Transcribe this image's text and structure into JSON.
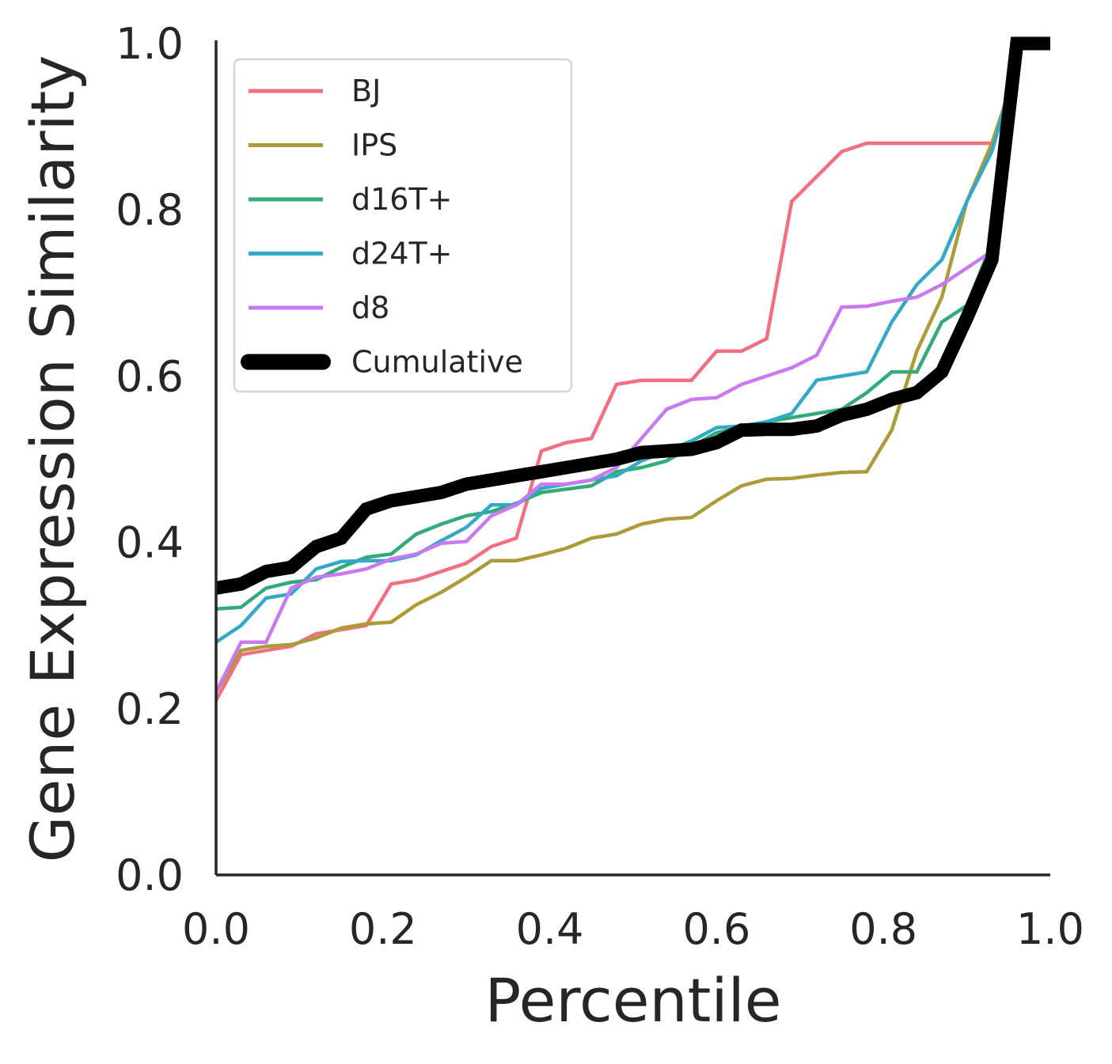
{
  "chart_data": {
    "type": "line",
    "title": "",
    "xlabel": "Percentile",
    "ylabel": "Gene Expression Similarity",
    "xlim": [
      0.0,
      1.0
    ],
    "ylim": [
      0.0,
      1.0
    ],
    "xticks": [
      "0.0",
      "0.2",
      "0.4",
      "0.6",
      "0.8",
      "1.0"
    ],
    "yticks": [
      "0.0",
      "0.2",
      "0.4",
      "0.6",
      "0.8",
      "1.0"
    ],
    "grid": false,
    "legend_position": "top-left",
    "series": [
      {
        "name": "BJ",
        "color": "#f0707f",
        "width": "normal",
        "x": [
          0.0,
          0.03,
          0.06,
          0.09,
          0.12,
          0.15,
          0.18,
          0.21,
          0.24,
          0.27,
          0.3,
          0.33,
          0.36,
          0.39,
          0.42,
          0.45,
          0.48,
          0.51,
          0.54,
          0.57,
          0.6,
          0.63,
          0.66,
          0.69,
          0.72,
          0.75,
          0.78,
          0.81,
          0.84,
          0.87,
          0.9,
          0.93
        ],
        "y": [
          0.21,
          0.265,
          0.27,
          0.275,
          0.29,
          0.295,
          0.3,
          0.35,
          0.355,
          0.365,
          0.375,
          0.395,
          0.405,
          0.51,
          0.52,
          0.525,
          0.59,
          0.595,
          0.595,
          0.595,
          0.63,
          0.63,
          0.645,
          0.81,
          0.84,
          0.87,
          0.88,
          0.88,
          0.88,
          0.88,
          0.88,
          0.88
        ]
      },
      {
        "name": "IPS",
        "color": "#ad9b3a",
        "width": "normal",
        "x": [
          0.0,
          0.03,
          0.06,
          0.09,
          0.12,
          0.15,
          0.18,
          0.21,
          0.24,
          0.27,
          0.3,
          0.33,
          0.36,
          0.39,
          0.42,
          0.45,
          0.48,
          0.51,
          0.54,
          0.57,
          0.6,
          0.63,
          0.66,
          0.69,
          0.72,
          0.75,
          0.78,
          0.81,
          0.84,
          0.87,
          0.9,
          0.93,
          0.95
        ],
        "y": [
          0.22,
          0.27,
          0.275,
          0.277,
          0.285,
          0.297,
          0.302,
          0.304,
          0.325,
          0.34,
          0.358,
          0.378,
          0.378,
          0.385,
          0.393,
          0.405,
          0.41,
          0.422,
          0.428,
          0.43,
          0.45,
          0.468,
          0.476,
          0.477,
          0.481,
          0.484,
          0.485,
          0.535,
          0.63,
          0.695,
          0.81,
          0.88,
          0.94
        ]
      },
      {
        "name": "d16T+",
        "color": "#32ab79",
        "width": "normal",
        "x": [
          0.0,
          0.03,
          0.06,
          0.09,
          0.12,
          0.15,
          0.18,
          0.21,
          0.24,
          0.27,
          0.3,
          0.33,
          0.36,
          0.39,
          0.42,
          0.45,
          0.48,
          0.51,
          0.54,
          0.57,
          0.6,
          0.63,
          0.66,
          0.69,
          0.72,
          0.75,
          0.78,
          0.81,
          0.84,
          0.87,
          0.9,
          0.93,
          0.95
        ],
        "y": [
          0.32,
          0.322,
          0.345,
          0.352,
          0.355,
          0.37,
          0.382,
          0.386,
          0.41,
          0.422,
          0.432,
          0.437,
          0.447,
          0.46,
          0.464,
          0.468,
          0.485,
          0.49,
          0.498,
          0.515,
          0.532,
          0.538,
          0.545,
          0.55,
          0.555,
          0.56,
          0.58,
          0.605,
          0.605,
          0.665,
          0.685,
          0.76,
          0.95
        ]
      },
      {
        "name": "d24T+",
        "color": "#33a9c5",
        "width": "normal",
        "x": [
          0.0,
          0.03,
          0.06,
          0.09,
          0.12,
          0.15,
          0.18,
          0.21,
          0.24,
          0.27,
          0.3,
          0.33,
          0.36,
          0.39,
          0.42,
          0.45,
          0.48,
          0.51,
          0.54,
          0.57,
          0.6,
          0.63,
          0.66,
          0.69,
          0.72,
          0.75,
          0.78,
          0.81,
          0.84,
          0.87,
          0.9,
          0.93,
          0.95
        ],
        "y": [
          0.28,
          0.3,
          0.333,
          0.338,
          0.368,
          0.377,
          0.378,
          0.378,
          0.385,
          0.402,
          0.418,
          0.445,
          0.445,
          0.465,
          0.47,
          0.475,
          0.48,
          0.498,
          0.51,
          0.522,
          0.538,
          0.54,
          0.545,
          0.555,
          0.595,
          0.6,
          0.605,
          0.665,
          0.71,
          0.74,
          0.81,
          0.87,
          0.94
        ]
      },
      {
        "name": "d8",
        "color": "#c97af0",
        "width": "normal",
        "x": [
          0.0,
          0.03,
          0.06,
          0.09,
          0.12,
          0.15,
          0.18,
          0.21,
          0.24,
          0.27,
          0.3,
          0.33,
          0.36,
          0.39,
          0.42,
          0.45,
          0.48,
          0.51,
          0.54,
          0.57,
          0.6,
          0.63,
          0.66,
          0.69,
          0.72,
          0.75,
          0.78,
          0.81,
          0.84,
          0.87,
          0.9,
          0.93
        ],
        "y": [
          0.22,
          0.28,
          0.28,
          0.345,
          0.358,
          0.362,
          0.368,
          0.38,
          0.386,
          0.399,
          0.401,
          0.432,
          0.445,
          0.47,
          0.47,
          0.475,
          0.49,
          0.525,
          0.56,
          0.572,
          0.574,
          0.59,
          0.6,
          0.61,
          0.625,
          0.683,
          0.684,
          0.69,
          0.695,
          0.71,
          0.73,
          0.75
        ]
      },
      {
        "name": "Cumulative",
        "color": "#000000",
        "width": "thick",
        "x": [
          0.0,
          0.03,
          0.06,
          0.09,
          0.12,
          0.15,
          0.18,
          0.21,
          0.24,
          0.27,
          0.3,
          0.33,
          0.36,
          0.39,
          0.42,
          0.45,
          0.48,
          0.51,
          0.54,
          0.57,
          0.6,
          0.63,
          0.66,
          0.69,
          0.72,
          0.75,
          0.78,
          0.81,
          0.84,
          0.87,
          0.9,
          0.93,
          0.96,
          0.98,
          1.0
        ],
        "y": [
          0.345,
          0.35,
          0.365,
          0.37,
          0.395,
          0.405,
          0.44,
          0.45,
          0.455,
          0.46,
          0.47,
          0.475,
          0.48,
          0.485,
          0.49,
          0.495,
          0.5,
          0.508,
          0.51,
          0.512,
          0.52,
          0.535,
          0.536,
          0.536,
          0.54,
          0.553,
          0.56,
          0.572,
          0.58,
          0.605,
          0.67,
          0.74,
          1.0,
          1.0,
          1.0
        ]
      }
    ]
  }
}
